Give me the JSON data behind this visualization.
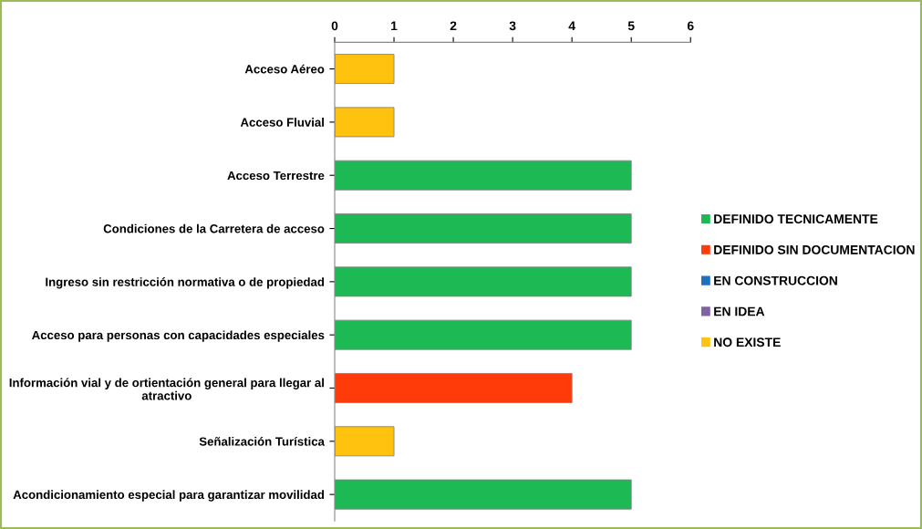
{
  "chart_data": {
    "type": "bar",
    "orientation": "horizontal",
    "categories": [
      "Acceso Aéreo",
      "Acceso Fluvial",
      "Acceso Terrestre",
      "Condiciones de la Carretera de acceso",
      "Ingreso sin restricción normativa o de propiedad",
      "Acceso para personas con capacidades especiales",
      "Información vial y de ortientación general para llegar al\natractivo",
      "Señalización Turística",
      "Acondicionamiento especial para garantizar movilidad"
    ],
    "series": [
      {
        "name": "DEFINIDO TECNICAMENTE",
        "color": "#1db954",
        "values": [
          null,
          null,
          5,
          5,
          5,
          5,
          null,
          null,
          5
        ]
      },
      {
        "name": "DEFINIDO SIN DOCUMENTACION",
        "color": "#ff3b0a",
        "values": [
          null,
          null,
          null,
          null,
          null,
          null,
          4,
          null,
          null
        ]
      },
      {
        "name": "EN CONSTRUCCION",
        "color": "#1f6fc0",
        "values": [
          null,
          null,
          null,
          null,
          null,
          null,
          null,
          null,
          null
        ]
      },
      {
        "name": "EN IDEA",
        "color": "#8064a2",
        "values": [
          null,
          null,
          null,
          null,
          null,
          null,
          null,
          null,
          null
        ]
      },
      {
        "name": "NO EXISTE",
        "color": "#ffc20e",
        "values": [
          1,
          1,
          null,
          null,
          null,
          null,
          null,
          1,
          null
        ]
      }
    ],
    "xlim": [
      0,
      6
    ],
    "xticks": [
      0,
      1,
      2,
      3,
      4,
      5,
      6
    ],
    "grid": false,
    "legend": "right"
  }
}
